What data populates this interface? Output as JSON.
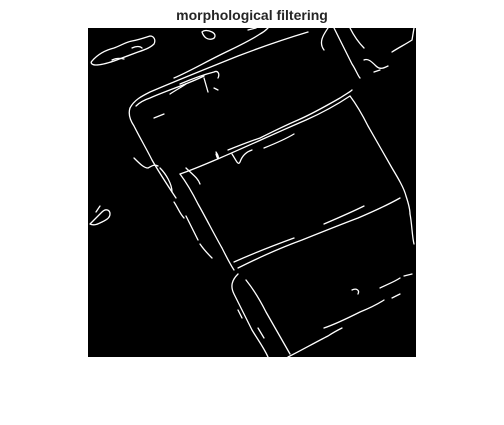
{
  "figure": {
    "title": "morphological filtering",
    "title_color": "#262626",
    "background_color": "#ffffff"
  },
  "image": {
    "content": "binary edge map",
    "background_color": "#000000",
    "edge_color": "#ffffff"
  }
}
